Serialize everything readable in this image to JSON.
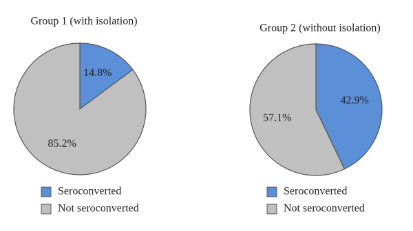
{
  "chart_data": [
    {
      "type": "pie",
      "title": "Group 1 (with isolation)",
      "categories": [
        "Seroconverted",
        "Not seroconverted"
      ],
      "values": [
        14.8,
        85.2
      ],
      "value_labels": [
        "14.8%",
        "85.2%"
      ],
      "colors": [
        "#5b8fd7",
        "#c0c0c0"
      ]
    },
    {
      "type": "pie",
      "title": "Group 2 (without isolation)",
      "categories": [
        "Seroconverted",
        "Not seroconverted"
      ],
      "values": [
        42.9,
        57.1
      ],
      "value_labels": [
        "42.9%",
        "57.1%"
      ],
      "colors": [
        "#5b8fd7",
        "#c0c0c0"
      ]
    }
  ]
}
